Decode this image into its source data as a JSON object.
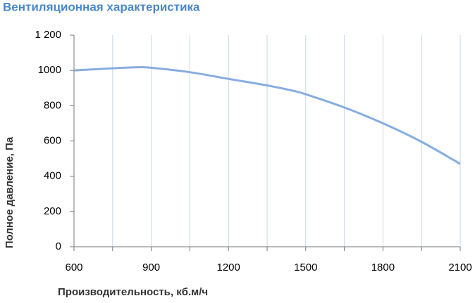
{
  "chart_data": {
    "type": "line",
    "title": "Вентиляционная характеристика",
    "x_label": "Производительность, кб.м/ч",
    "y_label": "Полное  давление, Па",
    "x": [
      600,
      750,
      850,
      900,
      1050,
      1200,
      1350,
      1450,
      1500,
      1650,
      1800,
      1950,
      2100
    ],
    "values": [
      1000,
      1012,
      1018,
      1015,
      990,
      952,
      915,
      885,
      865,
      790,
      700,
      595,
      470
    ],
    "color": "#86ade0",
    "xlim": [
      600,
      2100
    ],
    "xticks": [
      600,
      900,
      1200,
      1500,
      1800,
      2100
    ],
    "xminorticks": [
      750,
      1050,
      1350,
      1650,
      1950
    ],
    "ylim": [
      0,
      1200
    ],
    "yticks": [
      0,
      200,
      400,
      600,
      800,
      1000,
      {
        "value": 1200,
        "label": "1 200"
      }
    ],
    "grid": true
  }
}
